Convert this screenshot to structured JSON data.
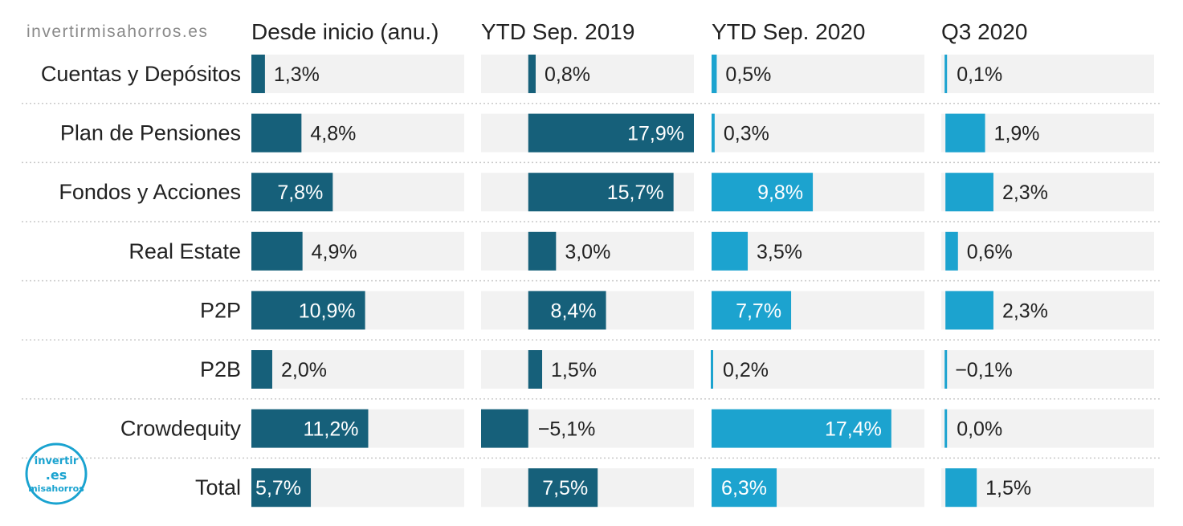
{
  "watermark": "invertirmisahorros.es",
  "logo": {
    "top": "invertir",
    "middle": ".es",
    "bottom": "misahorros"
  },
  "colors": {
    "dark": "#16607a",
    "light": "#1ca3cf",
    "track": "#f2f2f2",
    "text": "#222222",
    "divider": "#c9c9c9"
  },
  "chart_data": {
    "type": "bar",
    "orientation": "horizontal",
    "layout": "small-multiples",
    "categories": [
      "Cuentas y Depósitos",
      "Plan de Pensiones",
      "Fondos y Acciones",
      "Real Estate",
      "P2P",
      "P2B",
      "Crowdequity",
      "Total"
    ],
    "panels": [
      {
        "title": "Desde inicio (anu.)",
        "color": "dark",
        "xlim": [
          0,
          20.4
        ],
        "values": [
          1.3,
          4.8,
          7.8,
          4.9,
          10.9,
          2.0,
          11.2,
          5.7
        ],
        "labels": [
          "1,3%",
          "4,8%",
          "7,8%",
          "4,9%",
          "10,9%",
          "2,0%",
          "11,2%",
          "5,7%"
        ]
      },
      {
        "title": "YTD Sep. 2019",
        "color": "dark",
        "xlim": [
          -5.1,
          17.9
        ],
        "values": [
          0.8,
          17.9,
          15.7,
          3.0,
          8.4,
          1.5,
          -5.1,
          7.5
        ],
        "labels": [
          "0,8%",
          "17,9%",
          "15,7%",
          "3,0%",
          "8,4%",
          "1,5%",
          "−5,1%",
          "7,5%"
        ]
      },
      {
        "title": "YTD Sep. 2020",
        "color": "light",
        "xlim": [
          0,
          20.6
        ],
        "values": [
          0.5,
          0.3,
          9.8,
          3.5,
          7.7,
          0.2,
          17.4,
          6.3
        ],
        "labels": [
          "0,5%",
          "0,3%",
          "9,8%",
          "3,5%",
          "7,7%",
          "0,2%",
          "17,4%",
          "6,3%"
        ]
      },
      {
        "title": "Q3 2020",
        "color": "light",
        "xlim": [
          -0.2,
          10
        ],
        "values": [
          0.1,
          1.9,
          2.3,
          0.6,
          2.3,
          -0.1,
          0.0,
          1.5
        ],
        "labels": [
          "0,1%",
          "1,9%",
          "2,3%",
          "0,6%",
          "2,3%",
          "−0,1%",
          "0,0%",
          "1,5%"
        ]
      }
    ]
  }
}
